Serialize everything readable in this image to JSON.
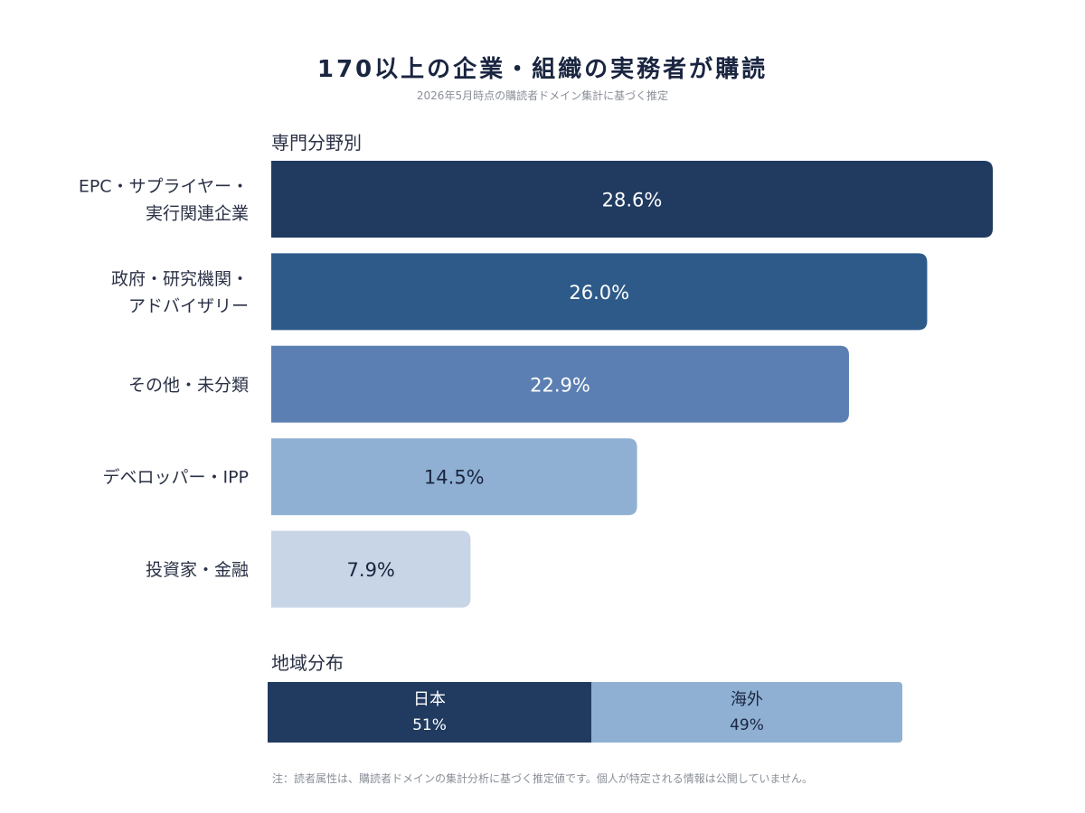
{
  "header": {
    "title": "170以上の企業・組織の実務者が購読",
    "subtitle": "2026年5月時点の購読者ドメイン集計に基づく推定"
  },
  "sections": {
    "by_field": "専門分野別",
    "by_region": "地域分布"
  },
  "chart_data": [
    {
      "type": "bar",
      "orientation": "horizontal",
      "title": "専門分野別",
      "unit": "%",
      "categories": [
        [
          "EPC・サプライヤー・",
          "実行関連企業"
        ],
        [
          "政府・研究機関・",
          "アドバイザリー"
        ],
        [
          "その他・未分類"
        ],
        [
          "デベロッパー・IPP"
        ],
        [
          "投資家・金融"
        ]
      ],
      "values": [
        28.6,
        26.0,
        22.9,
        14.5,
        7.9
      ],
      "value_labels": [
        "28.6%",
        "26.0%",
        "22.9%",
        "14.5%",
        "7.9%"
      ],
      "colors": [
        "#203a60",
        "#2e5a8a",
        "#5b7fb2",
        "#8fb0d3",
        "#c7d5e6"
      ],
      "label_colors": [
        "#ffffff",
        "#ffffff",
        "#ffffff",
        "#1a2540",
        "#1a2540"
      ],
      "xlim": [
        0,
        28.6
      ],
      "grid": false,
      "legend": "none"
    },
    {
      "type": "bar",
      "orientation": "stacked-horizontal",
      "title": "地域分布",
      "unit": "%",
      "categories": [
        "日本",
        "海外"
      ],
      "values": [
        51,
        49
      ],
      "value_labels": [
        "51%",
        "49%"
      ],
      "colors": [
        "#203a60",
        "#8fb0d3"
      ],
      "label_colors": [
        "#ffffff",
        "#1a2540"
      ]
    }
  ],
  "footnote": "注：読者属性は、購読者ドメインの集計分析に基づく推定値です。個人が特定される情報は公開していません。"
}
